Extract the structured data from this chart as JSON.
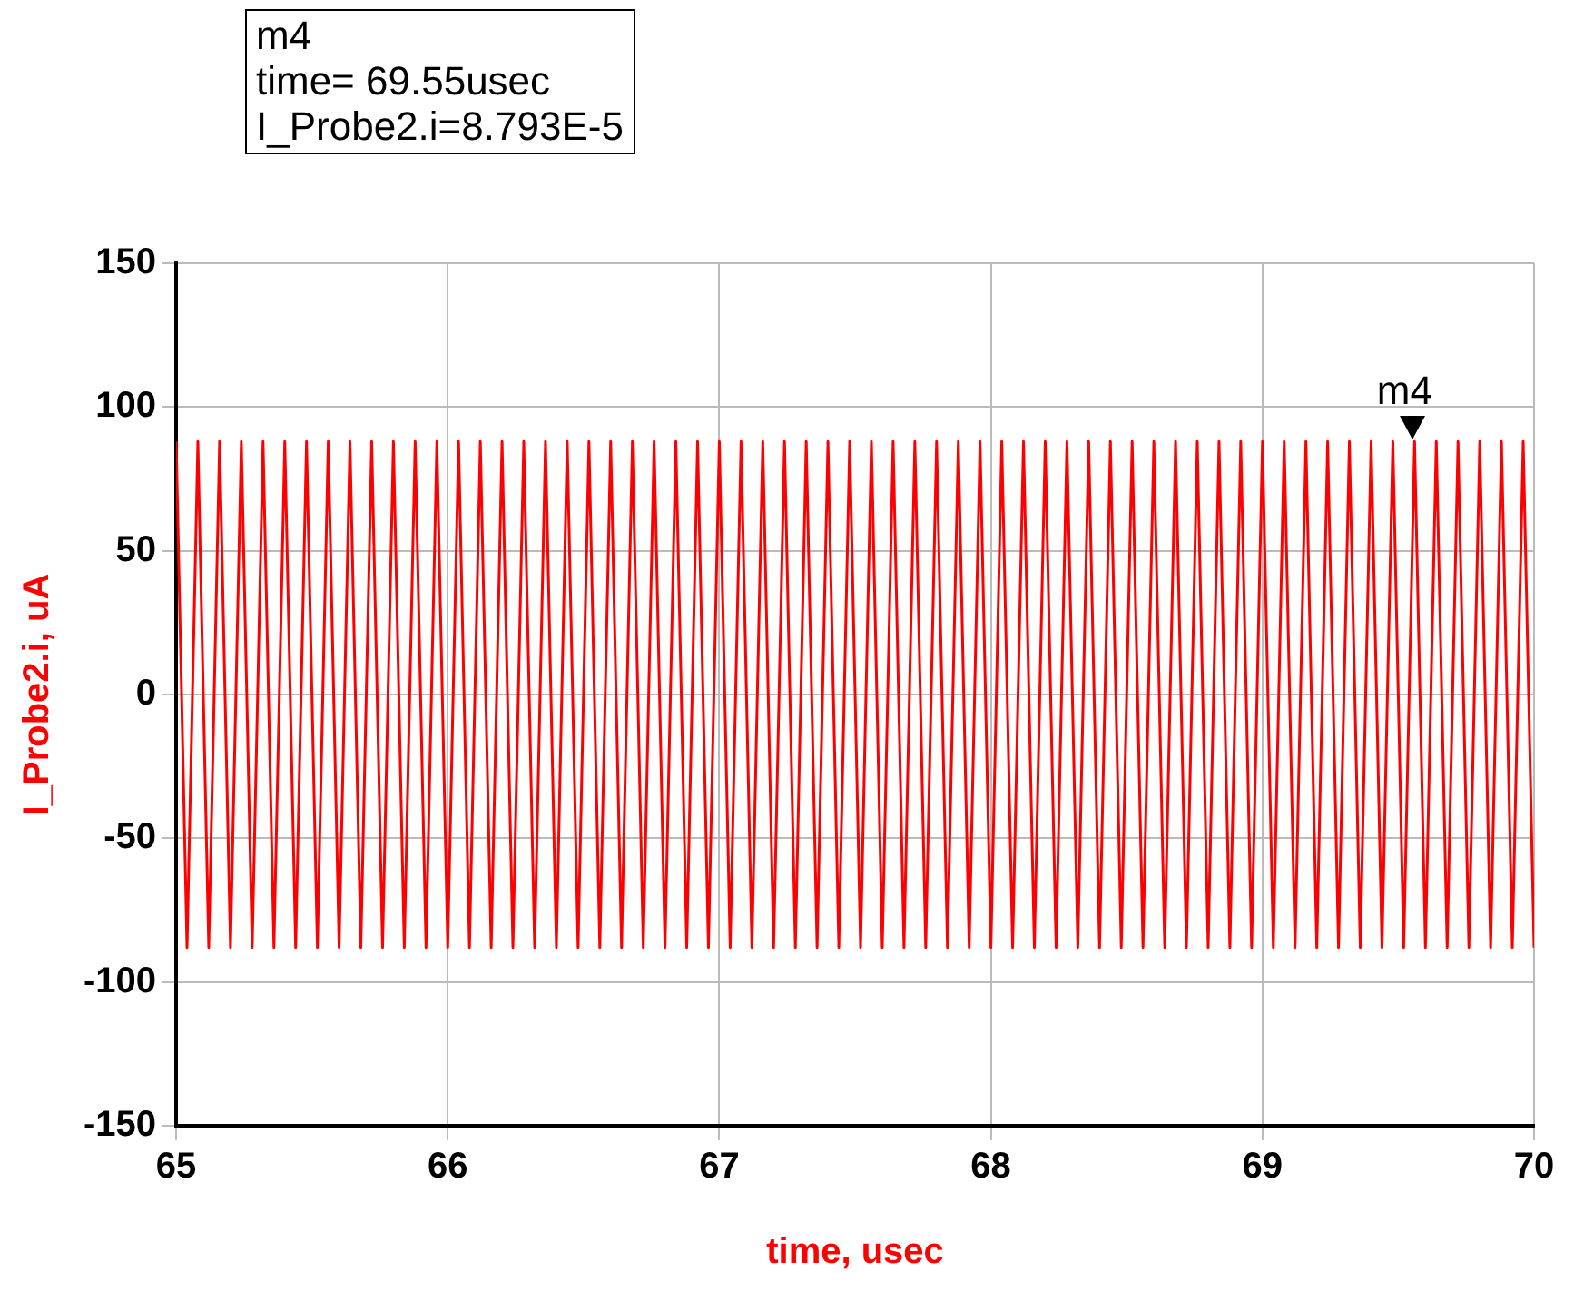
{
  "chart_data": {
    "type": "line",
    "xlabel": "time, usec",
    "ylabel": "I_Probe2.i, uA",
    "annotations": [
      "m4",
      "time= 69.55usec",
      "I_Probe2.i=8.793E-5",
      {
        "text": "m4",
        "x": 69.55,
        "y": 87.93
      }
    ],
    "xlim": [
      65,
      70
    ],
    "xticks": [
      65,
      66,
      67,
      68,
      69,
      70
    ],
    "ylim": [
      -150,
      150
    ],
    "yticks": [
      -150,
      -100,
      -50,
      0,
      50,
      100,
      150
    ],
    "grid": true,
    "marker": "none",
    "series": [
      {
        "color": "#ff0000",
        "x": [
          65,
          65.04,
          65.08,
          65.12,
          65.16,
          65.2,
          65.24,
          65.28,
          65.32,
          65.36,
          65.4,
          65.44,
          65.48,
          65.52,
          65.56,
          65.6,
          65.64,
          65.68,
          65.72,
          65.76,
          65.8,
          65.84,
          65.88,
          65.92,
          65.96,
          66,
          66.04,
          66.08,
          66.12,
          66.16,
          66.2,
          66.24,
          66.28,
          66.32,
          66.36,
          66.4,
          66.44,
          66.48,
          66.52,
          66.56,
          66.6,
          66.64,
          66.68,
          66.72,
          66.76,
          66.8,
          66.84,
          66.88,
          66.92,
          66.96,
          67,
          67.04,
          67.08,
          67.12,
          67.16,
          67.2,
          67.24,
          67.28,
          67.32,
          67.36,
          67.4,
          67.44,
          67.48,
          67.52,
          67.56,
          67.6,
          67.64,
          67.68,
          67.72,
          67.76,
          67.8,
          67.84,
          67.88,
          67.92,
          67.96,
          68,
          68.04,
          68.08,
          68.12,
          68.16,
          68.2,
          68.24,
          68.28,
          68.32,
          68.36,
          68.4,
          68.44,
          68.48,
          68.52,
          68.56,
          68.6,
          68.64,
          68.68,
          68.72,
          68.76,
          68.8,
          68.84,
          68.88,
          68.92,
          68.96,
          69,
          69.04,
          69.08,
          69.12,
          69.16,
          69.2,
          69.24,
          69.28,
          69.32,
          69.36,
          69.4,
          69.44,
          69.48,
          69.52,
          69.56,
          69.6,
          69.64,
          69.68,
          69.72,
          69.76,
          69.8,
          69.84,
          69.88,
          69.92,
          69.96,
          70
        ],
        "values": [
          88,
          -88,
          88,
          -88,
          88,
          -88,
          88,
          -88,
          88,
          -88,
          88,
          -88,
          88,
          -88,
          88,
          -88,
          88,
          -88,
          88,
          -88,
          88,
          -88,
          88,
          -88,
          88,
          -88,
          88,
          -88,
          88,
          -88,
          88,
          -88,
          88,
          -88,
          88,
          -88,
          88,
          -88,
          88,
          -88,
          88,
          -88,
          88,
          -88,
          88,
          -88,
          88,
          -88,
          88,
          -88,
          88,
          -88,
          88,
          -88,
          88,
          -88,
          88,
          -88,
          88,
          -88,
          88,
          -88,
          88,
          -88,
          88,
          -88,
          88,
          -88,
          88,
          -88,
          88,
          -88,
          88,
          -88,
          88,
          -88,
          88,
          -88,
          88,
          -88,
          88,
          -88,
          88,
          -88,
          88,
          -88,
          88,
          -88,
          88,
          -88,
          88,
          -88,
          88,
          -88,
          88,
          -88,
          88,
          -88,
          88,
          -88,
          88,
          -88,
          88,
          -88,
          88,
          -88,
          88,
          -88,
          88,
          -88,
          88,
          -88,
          88,
          -88,
          88,
          -88,
          88,
          -88,
          88,
          -88,
          88,
          -88,
          88,
          -88,
          88,
          -88
        ]
      }
    ]
  }
}
